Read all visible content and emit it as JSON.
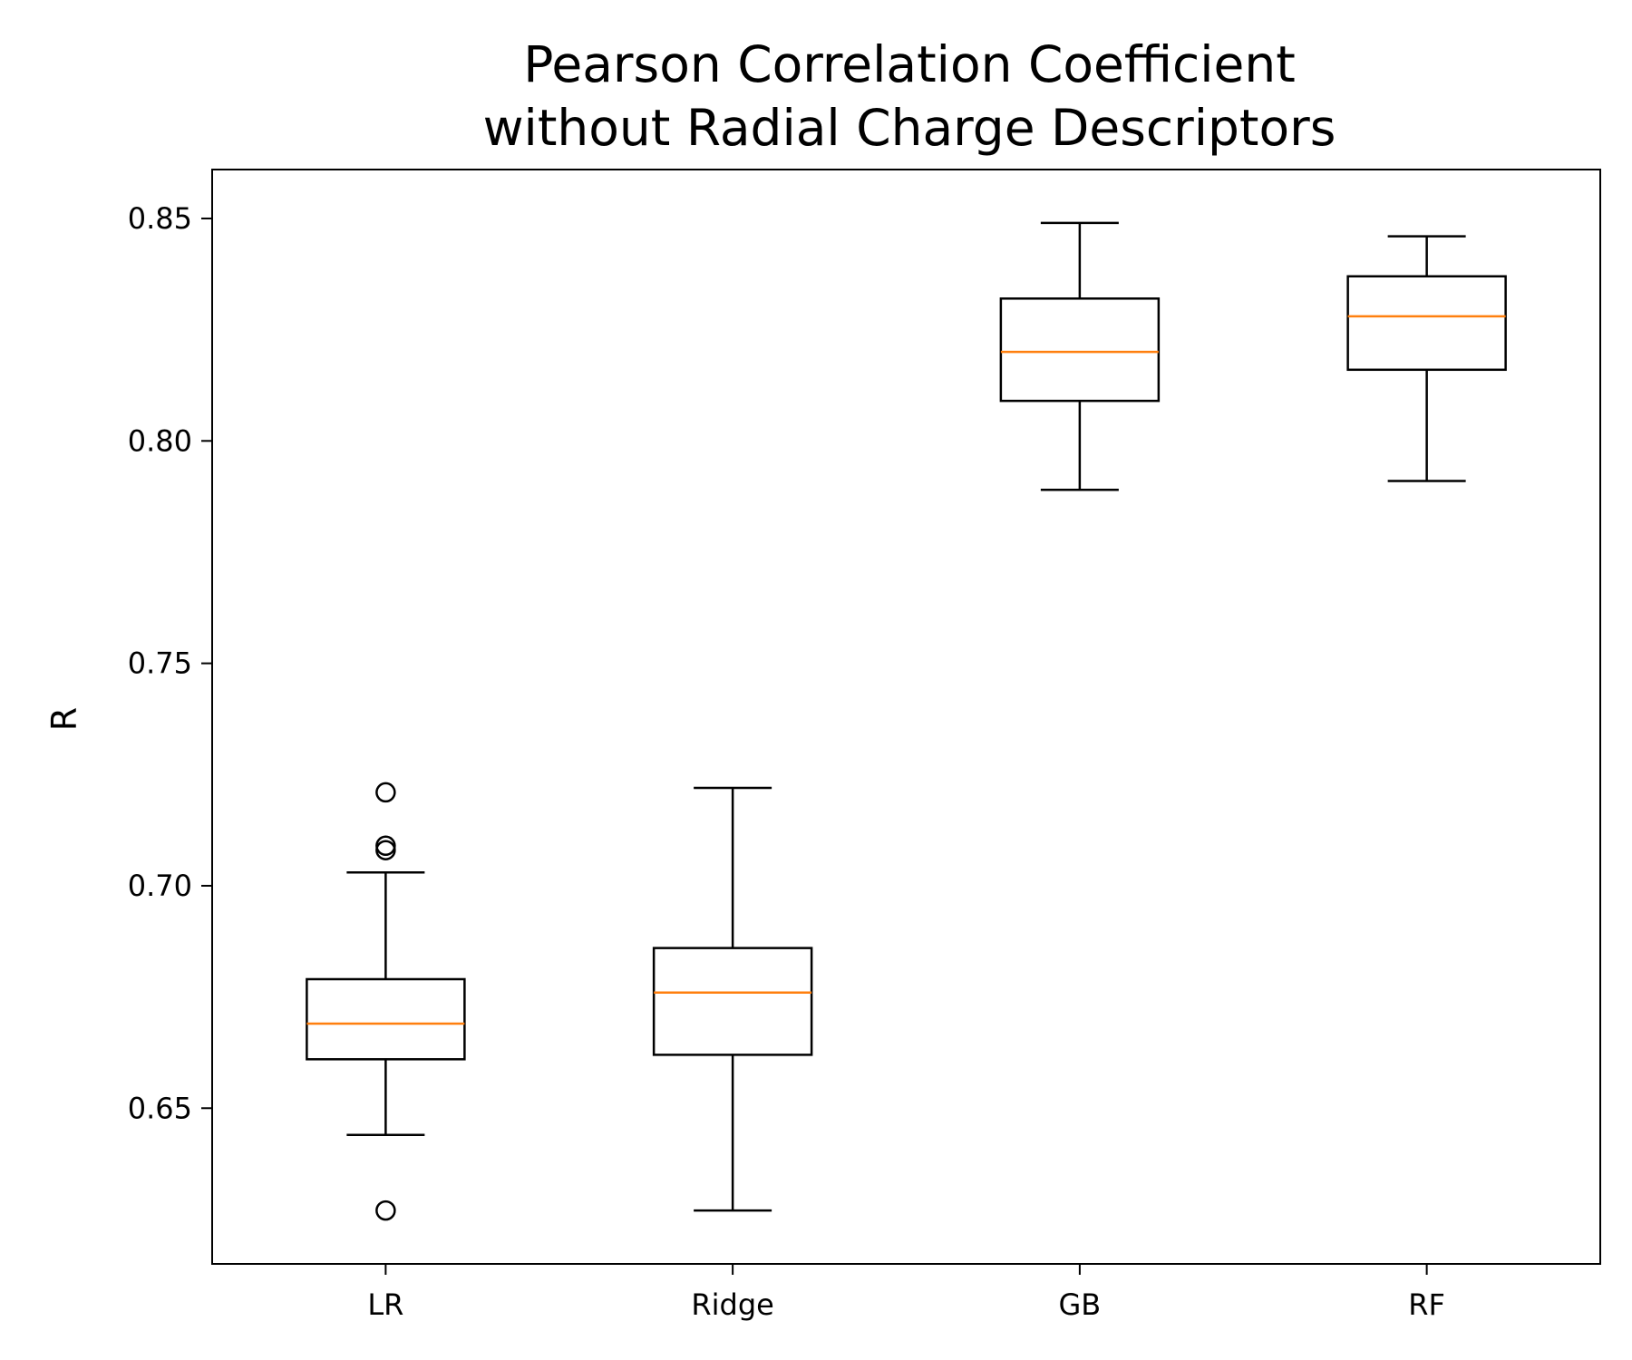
{
  "chart_data": {
    "type": "box",
    "title_lines": [
      "Pearson Correlation Coefficient",
      "without Radial Charge Descriptors"
    ],
    "xlabel": "",
    "ylabel": "R",
    "ylim": [
      0.615,
      0.861
    ],
    "yticks": [
      "0.65",
      "0.70",
      "0.75",
      "0.80",
      "0.85"
    ],
    "ytick_values": [
      0.65,
      0.7,
      0.75,
      0.8,
      0.85
    ],
    "grid": false,
    "legend": "none",
    "categories": [
      "LR",
      "Ridge",
      "GB",
      "RF"
    ],
    "boxes": [
      {
        "name": "LR",
        "whislo": 0.644,
        "q1": 0.661,
        "med": 0.669,
        "q3": 0.679,
        "whishi": 0.703,
        "fliers": [
          0.721,
          0.709,
          0.708,
          0.627
        ]
      },
      {
        "name": "Ridge",
        "whislo": 0.627,
        "q1": 0.662,
        "med": 0.676,
        "q3": 0.686,
        "whishi": 0.722,
        "fliers": []
      },
      {
        "name": "GB",
        "whislo": 0.789,
        "q1": 0.809,
        "med": 0.82,
        "q3": 0.832,
        "whishi": 0.849,
        "fliers": []
      },
      {
        "name": "RF",
        "whislo": 0.791,
        "q1": 0.816,
        "med": 0.828,
        "q3": 0.837,
        "whishi": 0.846,
        "fliers": []
      }
    ],
    "colors": {
      "box": "#000000",
      "median": "#ff7f0e",
      "axes": "#000000"
    }
  }
}
